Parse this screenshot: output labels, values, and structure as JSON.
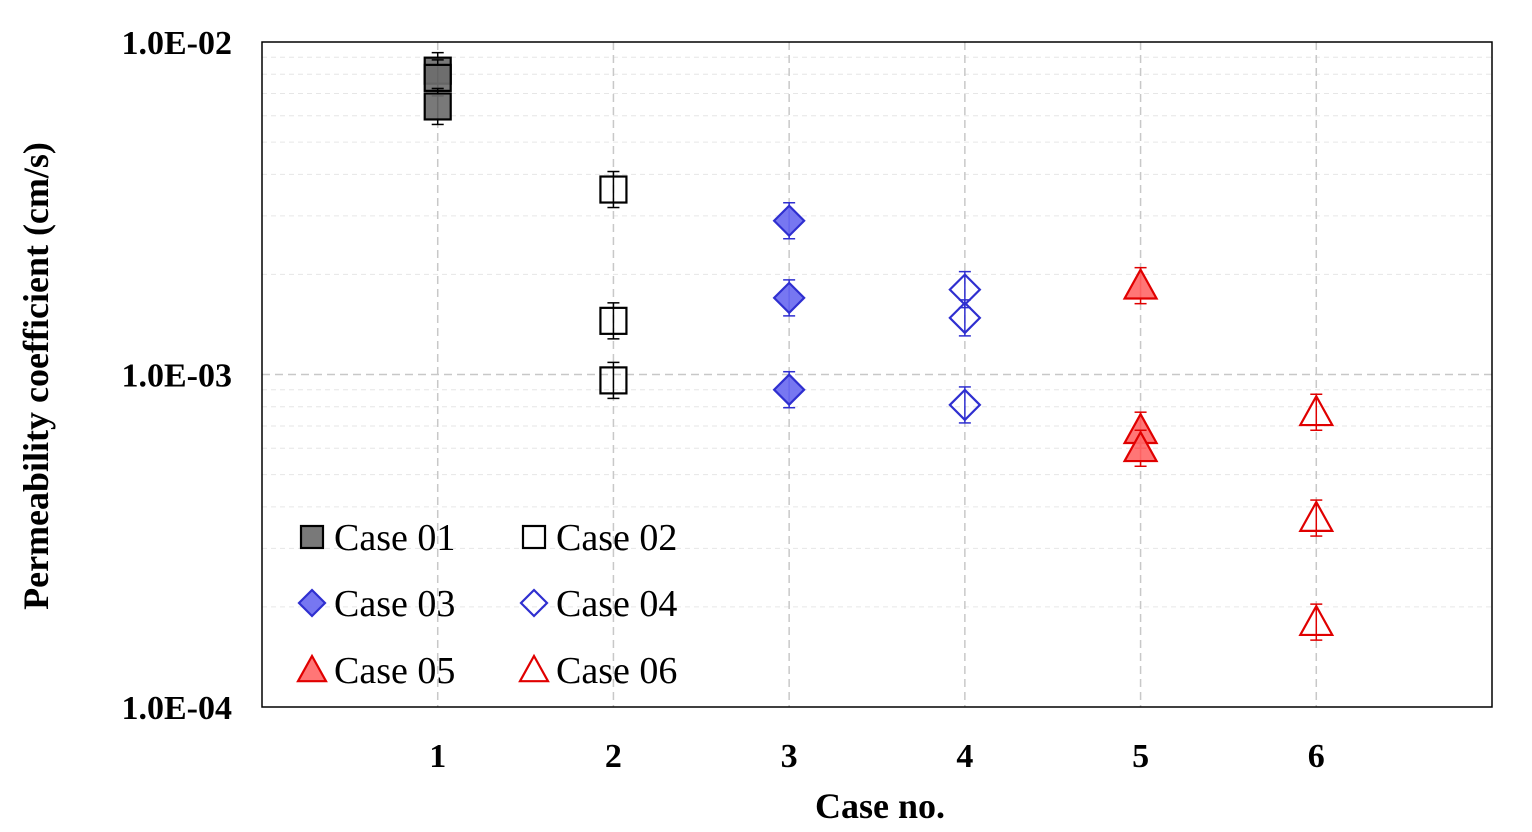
{
  "chart_data": {
    "type": "scatter",
    "xlabel": "Case no.",
    "ylabel": "Permeability coefficient (cm/s)",
    "xlim": [
      0,
      7
    ],
    "ylim": [
      0.0001,
      0.01
    ],
    "y_scale": "log",
    "x_ticks": [
      1,
      2,
      3,
      4,
      5,
      6
    ],
    "x_tick_labels": [
      "1",
      "2",
      "3",
      "4",
      "5",
      "6"
    ],
    "y_ticks": [
      0.0001,
      0.001,
      0.01
    ],
    "y_tick_labels": [
      "1.0E-04",
      "1.0E-03",
      "1.0E-02"
    ],
    "grid": true,
    "legend_position": "bottom-left",
    "series": [
      {
        "name": "Case 01",
        "marker": "square",
        "fill": "#6e6e6e",
        "stroke": "#000000",
        "points": [
          {
            "x": 1,
            "y": 0.0082
          },
          {
            "x": 1,
            "y": 0.0078
          },
          {
            "x": 1,
            "y": 0.0064
          }
        ]
      },
      {
        "name": "Case 02",
        "marker": "square",
        "fill": "none",
        "stroke": "#000000",
        "points": [
          {
            "x": 2,
            "y": 0.0036
          },
          {
            "x": 2,
            "y": 0.00145
          },
          {
            "x": 2,
            "y": 0.00096
          }
        ]
      },
      {
        "name": "Case 03",
        "marker": "diamond",
        "fill": "#6b6bf0",
        "stroke": "#2f2fd0",
        "points": [
          {
            "x": 3,
            "y": 0.0029
          },
          {
            "x": 3,
            "y": 0.0017
          },
          {
            "x": 3,
            "y": 0.0009
          }
        ]
      },
      {
        "name": "Case 04",
        "marker": "diamond",
        "fill": "none",
        "stroke": "#2f2fd0",
        "points": [
          {
            "x": 4,
            "y": 0.0018
          },
          {
            "x": 4,
            "y": 0.00148
          },
          {
            "x": 4,
            "y": 0.00081
          }
        ]
      },
      {
        "name": "Case 05",
        "marker": "triangle",
        "fill": "#ff6a6a",
        "stroke": "#e00000",
        "points": [
          {
            "x": 5,
            "y": 0.00185
          },
          {
            "x": 5,
            "y": 0.00068
          },
          {
            "x": 5,
            "y": 0.0006
          }
        ]
      },
      {
        "name": "Case 06",
        "marker": "triangle",
        "fill": "none",
        "stroke": "#e00000",
        "points": [
          {
            "x": 6,
            "y": 0.00077
          },
          {
            "x": 6,
            "y": 0.00037
          },
          {
            "x": 6,
            "y": 0.00018
          }
        ]
      }
    ]
  }
}
